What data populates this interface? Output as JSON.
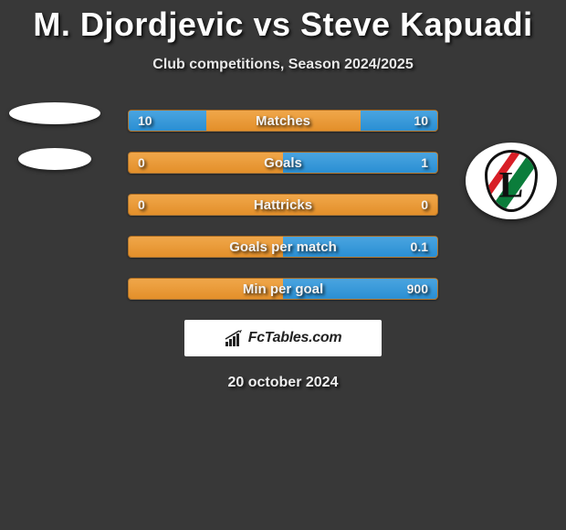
{
  "title": "M. Djordjevic vs Steve Kapuadi",
  "subtitle": "Club competitions, Season 2024/2025",
  "date": "20 october 2024",
  "brand_text": "FcTables.com",
  "colors": {
    "left_fill": "#3a97d6",
    "right_fill": "#3a97d6",
    "bar_base": "#e89638",
    "background": "#383838",
    "legia_red": "#d81e26",
    "legia_green": "#0b7d3b"
  },
  "rows": [
    {
      "label": "Matches",
      "left": "10",
      "right": "10",
      "left_pct": 50,
      "right_pct": 50
    },
    {
      "label": "Goals",
      "left": "0",
      "right": "1",
      "left_pct": 0,
      "right_pct": 100
    },
    {
      "label": "Hattricks",
      "left": "0",
      "right": "0",
      "left_pct": 0,
      "right_pct": 0
    },
    {
      "label": "Goals per match",
      "left": "",
      "right": "0.1",
      "left_pct": 0,
      "right_pct": 100
    },
    {
      "label": "Min per goal",
      "left": "",
      "right": "900",
      "left_pct": 0,
      "right_pct": 100
    }
  ],
  "badges": {
    "left_top": {
      "type": "blank"
    },
    "left_mid": {
      "type": "blank-small"
    },
    "right": {
      "type": "legia",
      "letter": "L"
    }
  }
}
